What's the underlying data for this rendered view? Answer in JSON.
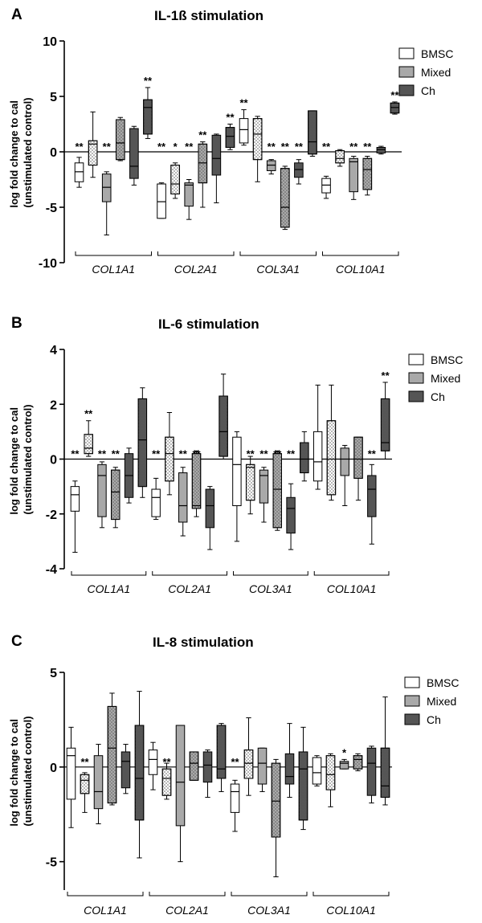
{
  "colors": {
    "BMSC": "#ffffff",
    "Mixed": "#a9a9a9",
    "Ch": "#555555",
    "dot": "#555555"
  },
  "chart_data": [
    {
      "type": "boxplot",
      "panel": "A",
      "title": "IL-1ß stimulation",
      "ylabel": "log fold change to cal\n(unstimulated control)",
      "ylim": [
        -10,
        10
      ],
      "yticks": [
        "10",
        "5",
        "0",
        "-5",
        "-10"
      ],
      "ytick_values": [
        10,
        5,
        0,
        -5,
        -10
      ],
      "groups": [
        "COL1A1",
        "COL2A1",
        "COL3A1",
        "COL10A1"
      ],
      "legend": [
        "BMSC",
        "Mixed",
        "Ch"
      ],
      "boxes": [
        {
          "group": 0,
          "cell": "BMSC",
          "stimulated": false,
          "min": -3.2,
          "q1": -2.7,
          "median": -1.8,
          "q3": -1.0,
          "max": -0.5,
          "sig": "**"
        },
        {
          "group": 0,
          "cell": "BMSC",
          "stimulated": true,
          "min": -2.3,
          "q1": -1.2,
          "median": 0.7,
          "q3": 1.0,
          "max": 3.6,
          "sig": ""
        },
        {
          "group": 0,
          "cell": "Mixed",
          "stimulated": false,
          "min": -7.5,
          "q1": -4.5,
          "median": -3.2,
          "q3": -2.0,
          "max": -1.8,
          "sig": "**"
        },
        {
          "group": 0,
          "cell": "Mixed",
          "stimulated": true,
          "min": -0.8,
          "q1": -0.7,
          "median": 0.8,
          "q3": 2.9,
          "max": 3.1,
          "sig": ""
        },
        {
          "group": 0,
          "cell": "Ch",
          "stimulated": false,
          "min": -3.0,
          "q1": -2.4,
          "median": -1.3,
          "q3": 2.1,
          "max": 2.3,
          "sig": ""
        },
        {
          "group": 0,
          "cell": "Ch",
          "stimulated": true,
          "min": 1.2,
          "q1": 1.6,
          "median": 4.0,
          "q3": 4.7,
          "max": 5.8,
          "sig": "**"
        },
        {
          "group": 1,
          "cell": "BMSC",
          "stimulated": false,
          "min": -6.0,
          "q1": -6.0,
          "median": -4.5,
          "q3": -2.9,
          "max": -2.8,
          "sig": "**"
        },
        {
          "group": 1,
          "cell": "BMSC",
          "stimulated": true,
          "min": -4.2,
          "q1": -3.8,
          "median": -2.9,
          "q3": -1.2,
          "max": -1.0,
          "sig": "*"
        },
        {
          "group": 1,
          "cell": "Mixed",
          "stimulated": false,
          "min": -6.1,
          "q1": -4.9,
          "median": -3.0,
          "q3": -2.8,
          "max": -2.5,
          "sig": "**"
        },
        {
          "group": 1,
          "cell": "Mixed",
          "stimulated": true,
          "min": -5.0,
          "q1": -2.8,
          "median": -1.0,
          "q3": 0.7,
          "max": 0.9,
          "sig": "**"
        },
        {
          "group": 1,
          "cell": "Ch",
          "stimulated": false,
          "min": -4.6,
          "q1": -2.1,
          "median": -0.6,
          "q3": 1.5,
          "max": 1.6,
          "sig": ""
        },
        {
          "group": 1,
          "cell": "Ch",
          "stimulated": true,
          "min": 0.2,
          "q1": 0.4,
          "median": 1.4,
          "q3": 2.2,
          "max": 2.5,
          "sig": "**"
        },
        {
          "group": 2,
          "cell": "BMSC",
          "stimulated": false,
          "min": 0.6,
          "q1": 0.8,
          "median": 2.0,
          "q3": 3.0,
          "max": 3.8,
          "sig": "**"
        },
        {
          "group": 2,
          "cell": "BMSC",
          "stimulated": true,
          "min": -2.7,
          "q1": -0.7,
          "median": 1.6,
          "q3": 3.0,
          "max": 3.2,
          "sig": ""
        },
        {
          "group": 2,
          "cell": "Mixed",
          "stimulated": false,
          "min": -2.0,
          "q1": -1.7,
          "median": -1.2,
          "q3": -0.8,
          "max": -0.7,
          "sig": "**"
        },
        {
          "group": 2,
          "cell": "Mixed",
          "stimulated": true,
          "min": -7.0,
          "q1": -6.8,
          "median": -5.0,
          "q3": -1.5,
          "max": -1.3,
          "sig": "**"
        },
        {
          "group": 2,
          "cell": "Ch",
          "stimulated": false,
          "min": -2.9,
          "q1": -2.3,
          "median": -1.6,
          "q3": -1.0,
          "max": -0.7,
          "sig": "**"
        },
        {
          "group": 2,
          "cell": "Ch",
          "stimulated": true,
          "min": -0.4,
          "q1": -0.2,
          "median": 0.9,
          "q3": 3.7,
          "max": 3.7,
          "sig": ""
        },
        {
          "group": 3,
          "cell": "BMSC",
          "stimulated": false,
          "min": -4.2,
          "q1": -3.7,
          "median": -3.0,
          "q3": -2.4,
          "max": -2.2,
          "sig": "**"
        },
        {
          "group": 3,
          "cell": "BMSC",
          "stimulated": true,
          "min": -1.3,
          "q1": -1.0,
          "median": -0.6,
          "q3": 0.1,
          "max": 0.2,
          "sig": ""
        },
        {
          "group": 3,
          "cell": "Mixed",
          "stimulated": false,
          "min": -4.3,
          "q1": -3.6,
          "median": -0.9,
          "q3": -0.6,
          "max": -0.4,
          "sig": "**"
        },
        {
          "group": 3,
          "cell": "Mixed",
          "stimulated": true,
          "min": -3.9,
          "q1": -3.4,
          "median": -1.6,
          "q3": -0.6,
          "max": -0.4,
          "sig": "**"
        },
        {
          "group": 3,
          "cell": "Ch",
          "stimulated": false,
          "min": -0.2,
          "q1": -0.1,
          "median": 0.2,
          "q3": 0.4,
          "max": 0.5,
          "sig": ""
        },
        {
          "group": 3,
          "cell": "Ch",
          "stimulated": true,
          "min": 3.4,
          "q1": 3.5,
          "median": 4.0,
          "q3": 4.4,
          "max": 4.5,
          "sig": "**"
        }
      ]
    },
    {
      "type": "boxplot",
      "panel": "B",
      "title": "IL-6 stimulation",
      "ylabel": "log fold change to cal\n(unstimulated control)",
      "ylim": [
        -4,
        4
      ],
      "yticks": [
        "4",
        "2",
        "0",
        "-2",
        "-4"
      ],
      "ytick_values": [
        4,
        2,
        0,
        -2,
        -4
      ],
      "groups": [
        "COL1A1",
        "COL2A1",
        "COL3A1",
        "COL10A1"
      ],
      "legend": [
        "BMSC",
        "Mixed",
        "Ch"
      ],
      "boxes": [
        {
          "group": 0,
          "cell": "BMSC",
          "stimulated": false,
          "min": -3.4,
          "q1": -1.9,
          "median": -1.3,
          "q3": -1.0,
          "max": -0.8,
          "sig": "**"
        },
        {
          "group": 0,
          "cell": "BMSC",
          "stimulated": true,
          "min": 0.1,
          "q1": 0.2,
          "median": 0.4,
          "q3": 0.9,
          "max": 1.4,
          "sig": "**"
        },
        {
          "group": 0,
          "cell": "Mixed",
          "stimulated": false,
          "min": -2.5,
          "q1": -2.1,
          "median": -0.6,
          "q3": -0.2,
          "max": -0.1,
          "sig": "**"
        },
        {
          "group": 0,
          "cell": "Mixed",
          "stimulated": true,
          "min": -2.5,
          "q1": -2.2,
          "median": -1.2,
          "q3": -0.4,
          "max": -0.3,
          "sig": "**"
        },
        {
          "group": 0,
          "cell": "Ch",
          "stimulated": false,
          "min": -1.6,
          "q1": -1.4,
          "median": -0.6,
          "q3": 0.2,
          "max": 0.4,
          "sig": ""
        },
        {
          "group": 0,
          "cell": "Ch",
          "stimulated": true,
          "min": -1.4,
          "q1": -1.0,
          "median": 0.7,
          "q3": 2.2,
          "max": 2.6,
          "sig": ""
        },
        {
          "group": 1,
          "cell": "BMSC",
          "stimulated": false,
          "min": -2.2,
          "q1": -2.1,
          "median": -1.4,
          "q3": -1.1,
          "max": -0.7,
          "sig": "**"
        },
        {
          "group": 1,
          "cell": "BMSC",
          "stimulated": true,
          "min": -1.3,
          "q1": -0.8,
          "median": 0.2,
          "q3": 0.8,
          "max": 1.7,
          "sig": ""
        },
        {
          "group": 1,
          "cell": "Mixed",
          "stimulated": false,
          "min": -2.8,
          "q1": -2.3,
          "median": -1.7,
          "q3": -0.5,
          "max": -0.3,
          "sig": "**"
        },
        {
          "group": 1,
          "cell": "Mixed",
          "stimulated": true,
          "min": -2.1,
          "q1": -1.8,
          "median": -1.7,
          "q3": 0.2,
          "max": 0.3,
          "sig": "**"
        },
        {
          "group": 1,
          "cell": "Ch",
          "stimulated": false,
          "min": -3.3,
          "q1": -2.5,
          "median": -1.7,
          "q3": -1.1,
          "max": -1.0,
          "sig": ""
        },
        {
          "group": 1,
          "cell": "Ch",
          "stimulated": true,
          "min": 0.0,
          "q1": 0.1,
          "median": 1.0,
          "q3": 2.3,
          "max": 3.1,
          "sig": ""
        },
        {
          "group": 2,
          "cell": "BMSC",
          "stimulated": false,
          "min": -3.0,
          "q1": -1.7,
          "median": -0.2,
          "q3": 0.8,
          "max": 1.0,
          "sig": ""
        },
        {
          "group": 2,
          "cell": "BMSC",
          "stimulated": true,
          "min": -2.0,
          "q1": -1.5,
          "median": -0.3,
          "q3": -0.2,
          "max": 0.1,
          "sig": "**"
        },
        {
          "group": 2,
          "cell": "Mixed",
          "stimulated": false,
          "min": -2.3,
          "q1": -1.6,
          "median": -0.6,
          "q3": -0.4,
          "max": -0.3,
          "sig": "**"
        },
        {
          "group": 2,
          "cell": "Mixed",
          "stimulated": true,
          "min": -2.6,
          "q1": -2.5,
          "median": -1.1,
          "q3": 0.2,
          "max": 0.3,
          "sig": "**"
        },
        {
          "group": 2,
          "cell": "Ch",
          "stimulated": false,
          "min": -3.3,
          "q1": -2.7,
          "median": -1.8,
          "q3": -1.4,
          "max": -0.9,
          "sig": "**"
        },
        {
          "group": 2,
          "cell": "Ch",
          "stimulated": true,
          "min": -0.8,
          "q1": -0.5,
          "median": 0.0,
          "q3": 0.6,
          "max": 1.0,
          "sig": ""
        },
        {
          "group": 3,
          "cell": "BMSC",
          "stimulated": false,
          "min": -1.1,
          "q1": -0.8,
          "median": -0.1,
          "q3": 1.0,
          "max": 2.7,
          "sig": ""
        },
        {
          "group": 3,
          "cell": "BMSC",
          "stimulated": true,
          "min": -1.5,
          "q1": -1.3,
          "median": 0.0,
          "q3": 1.4,
          "max": 2.7,
          "sig": ""
        },
        {
          "group": 3,
          "cell": "Mixed",
          "stimulated": false,
          "min": -1.7,
          "q1": -0.6,
          "median": 0.0,
          "q3": 0.4,
          "max": 0.5,
          "sig": ""
        },
        {
          "group": 3,
          "cell": "Mixed",
          "stimulated": true,
          "min": -1.5,
          "q1": -0.7,
          "median": 0.0,
          "q3": 0.8,
          "max": 0.8,
          "sig": ""
        },
        {
          "group": 3,
          "cell": "Ch",
          "stimulated": false,
          "min": -3.1,
          "q1": -2.1,
          "median": -1.1,
          "q3": -0.6,
          "max": -0.2,
          "sig": "**"
        },
        {
          "group": 3,
          "cell": "Ch",
          "stimulated": true,
          "min": 0.0,
          "q1": 0.3,
          "median": 0.6,
          "q3": 2.2,
          "max": 2.8,
          "sig": "**"
        }
      ]
    },
    {
      "type": "boxplot",
      "panel": "C",
      "title": "IL-8 stimulation",
      "ylabel": "log fold change to cal\n(unstimulated control)",
      "ylim": [
        -6.5,
        5
      ],
      "yticks": [
        "5",
        "0",
        "-5"
      ],
      "ytick_values": [
        5,
        0,
        -5
      ],
      "groups": [
        "COL1A1",
        "COL2A1",
        "COL3A1",
        "COL10A1"
      ],
      "legend": [
        "BMSC",
        "Mixed",
        "Ch"
      ],
      "boxes": [
        {
          "group": 0,
          "cell": "BMSC",
          "stimulated": false,
          "min": -3.2,
          "q1": -1.7,
          "median": 0.6,
          "q3": 1.0,
          "max": 2.1,
          "sig": ""
        },
        {
          "group": 0,
          "cell": "BMSC",
          "stimulated": true,
          "min": -2.4,
          "q1": -1.4,
          "median": -0.7,
          "q3": -0.4,
          "max": -0.3,
          "sig": "**"
        },
        {
          "group": 0,
          "cell": "Mixed",
          "stimulated": false,
          "min": -3.0,
          "q1": -2.2,
          "median": -1.3,
          "q3": 0.6,
          "max": 1.2,
          "sig": ""
        },
        {
          "group": 0,
          "cell": "Mixed",
          "stimulated": true,
          "min": -2.0,
          "q1": -1.9,
          "median": 1.0,
          "q3": 3.2,
          "max": 3.9,
          "sig": ""
        },
        {
          "group": 0,
          "cell": "Ch",
          "stimulated": false,
          "min": -1.4,
          "q1": -1.1,
          "median": 0.3,
          "q3": 0.8,
          "max": 1.2,
          "sig": ""
        },
        {
          "group": 0,
          "cell": "Ch",
          "stimulated": true,
          "min": -4.8,
          "q1": -2.8,
          "median": -0.6,
          "q3": 2.2,
          "max": 4.0,
          "sig": ""
        },
        {
          "group": 1,
          "cell": "BMSC",
          "stimulated": false,
          "min": -1.2,
          "q1": -0.4,
          "median": 0.4,
          "q3": 0.9,
          "max": 1.3,
          "sig": ""
        },
        {
          "group": 1,
          "cell": "BMSC",
          "stimulated": true,
          "min": -1.7,
          "q1": -1.5,
          "median": -0.6,
          "q3": -0.1,
          "max": 0.2,
          "sig": "**"
        },
        {
          "group": 1,
          "cell": "Mixed",
          "stimulated": false,
          "min": -5.0,
          "q1": -3.1,
          "median": -0.8,
          "q3": 2.2,
          "max": 2.2,
          "sig": ""
        },
        {
          "group": 1,
          "cell": "Mixed",
          "stimulated": true,
          "min": -0.7,
          "q1": -0.7,
          "median": 0.2,
          "q3": 0.8,
          "max": 0.8,
          "sig": ""
        },
        {
          "group": 1,
          "cell": "Ch",
          "stimulated": false,
          "min": -1.6,
          "q1": -0.8,
          "median": 0.1,
          "q3": 0.8,
          "max": 0.9,
          "sig": ""
        },
        {
          "group": 1,
          "cell": "Ch",
          "stimulated": true,
          "min": -1.3,
          "q1": -0.6,
          "median": -0.1,
          "q3": 2.2,
          "max": 2.3,
          "sig": ""
        },
        {
          "group": 2,
          "cell": "BMSC",
          "stimulated": false,
          "min": -3.4,
          "q1": -2.4,
          "median": -1.3,
          "q3": -0.9,
          "max": -0.7,
          "sig": "**"
        },
        {
          "group": 2,
          "cell": "BMSC",
          "stimulated": true,
          "min": -1.5,
          "q1": -0.6,
          "median": 0.2,
          "q3": 0.9,
          "max": 2.6,
          "sig": ""
        },
        {
          "group": 2,
          "cell": "Mixed",
          "stimulated": false,
          "min": -1.3,
          "q1": -0.9,
          "median": 0.2,
          "q3": 1.0,
          "max": 1.0,
          "sig": ""
        },
        {
          "group": 2,
          "cell": "Mixed",
          "stimulated": true,
          "min": -5.8,
          "q1": -3.7,
          "median": -1.8,
          "q3": 0.2,
          "max": 0.4,
          "sig": ""
        },
        {
          "group": 2,
          "cell": "Ch",
          "stimulated": false,
          "min": -1.6,
          "q1": -0.9,
          "median": -0.5,
          "q3": 0.7,
          "max": 2.3,
          "sig": ""
        },
        {
          "group": 2,
          "cell": "Ch",
          "stimulated": true,
          "min": -3.3,
          "q1": -2.8,
          "median": -0.1,
          "q3": 0.8,
          "max": 2.1,
          "sig": ""
        },
        {
          "group": 3,
          "cell": "BMSC",
          "stimulated": false,
          "min": -1.0,
          "q1": -0.9,
          "median": -0.3,
          "q3": 0.5,
          "max": 0.6,
          "sig": ""
        },
        {
          "group": 3,
          "cell": "BMSC",
          "stimulated": true,
          "min": -2.1,
          "q1": -1.2,
          "median": -0.4,
          "q3": 0.6,
          "max": 0.7,
          "sig": ""
        },
        {
          "group": 3,
          "cell": "Mixed",
          "stimulated": false,
          "min": -0.1,
          "q1": -0.1,
          "median": 0.2,
          "q3": 0.3,
          "max": 0.4,
          "sig": "*"
        },
        {
          "group": 3,
          "cell": "Mixed",
          "stimulated": true,
          "min": -0.2,
          "q1": -0.1,
          "median": 0.4,
          "q3": 0.6,
          "max": 0.7,
          "sig": ""
        },
        {
          "group": 3,
          "cell": "Ch",
          "stimulated": false,
          "min": -1.9,
          "q1": -1.5,
          "median": 0.2,
          "q3": 1.0,
          "max": 1.1,
          "sig": ""
        },
        {
          "group": 3,
          "cell": "Ch",
          "stimulated": true,
          "min": -2.0,
          "q1": -1.6,
          "median": -1.0,
          "q3": 1.0,
          "max": 3.7,
          "sig": ""
        }
      ]
    }
  ]
}
